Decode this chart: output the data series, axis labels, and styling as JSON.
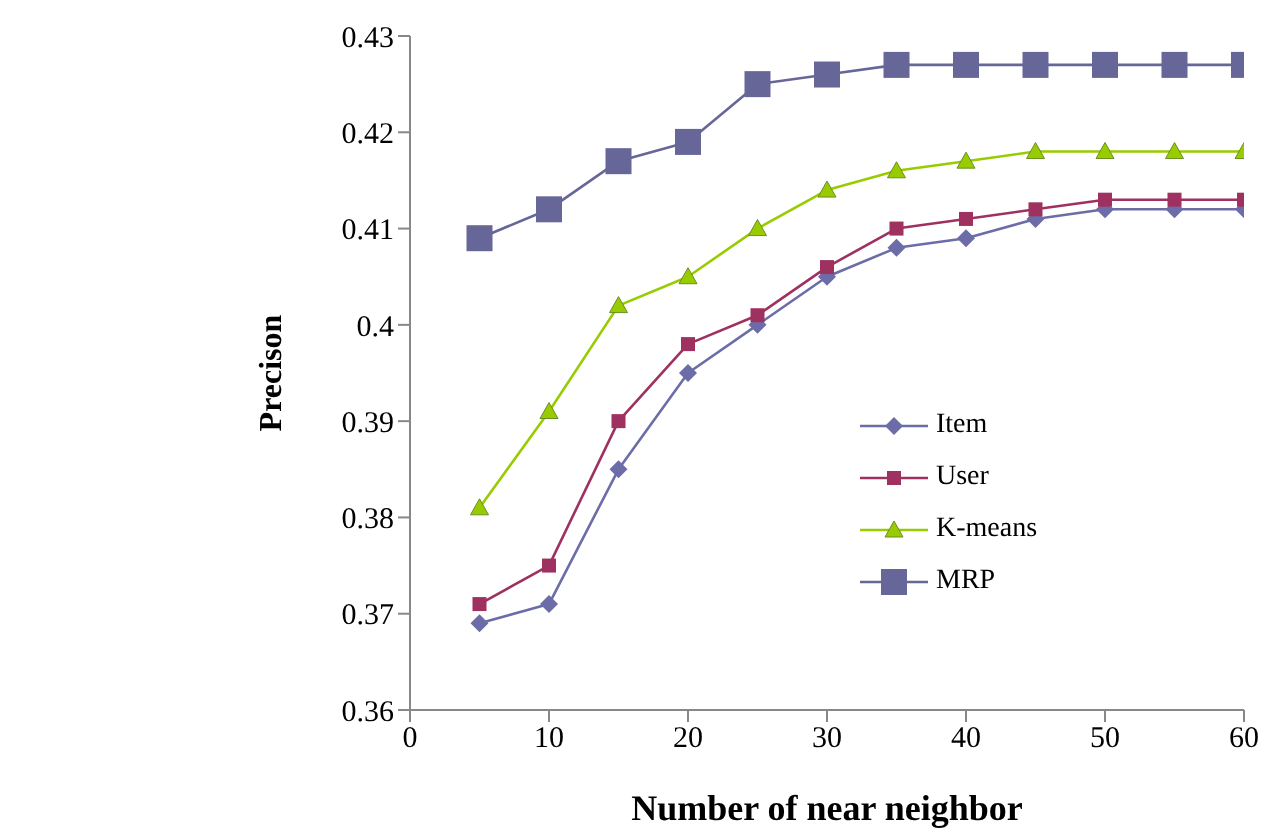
{
  "chart_data": {
    "type": "line",
    "xlabel": "Number of near neighbor",
    "ylabel": "Precison",
    "x": [
      5,
      10,
      15,
      20,
      25,
      30,
      35,
      40,
      45,
      50,
      55,
      60
    ],
    "xlim": [
      0,
      60
    ],
    "xticks": [
      0,
      10,
      20,
      30,
      40,
      50,
      60
    ],
    "ylim": [
      0.36,
      0.43
    ],
    "yticks": [
      0.36,
      0.37,
      0.38,
      0.39,
      0.4,
      0.41,
      0.42,
      0.43
    ],
    "grid": false,
    "legend": "bottom right",
    "series": [
      {
        "name": "Item",
        "color": "#6c6ca8",
        "marker": "diamond",
        "values": [
          0.369,
          0.371,
          0.385,
          0.395,
          0.4,
          0.405,
          0.408,
          0.409,
          0.411,
          0.412,
          0.412,
          0.412
        ]
      },
      {
        "name": "User",
        "color": "#9e3160",
        "marker": "square",
        "values": [
          0.371,
          0.375,
          0.39,
          0.398,
          0.401,
          0.406,
          0.41,
          0.411,
          0.412,
          0.413,
          0.413,
          0.413
        ]
      },
      {
        "name": "K-means",
        "color": "#99cc00",
        "marker": "triangle",
        "values": [
          0.381,
          0.391,
          0.402,
          0.405,
          0.41,
          0.414,
          0.416,
          0.417,
          0.418,
          0.418,
          0.418,
          0.418
        ]
      },
      {
        "name": "MRP",
        "color": "#666699",
        "marker": "square",
        "values": [
          0.409,
          0.412,
          0.417,
          0.419,
          0.425,
          0.426,
          0.427,
          0.427,
          0.427,
          0.427,
          0.427,
          0.427
        ]
      }
    ]
  }
}
